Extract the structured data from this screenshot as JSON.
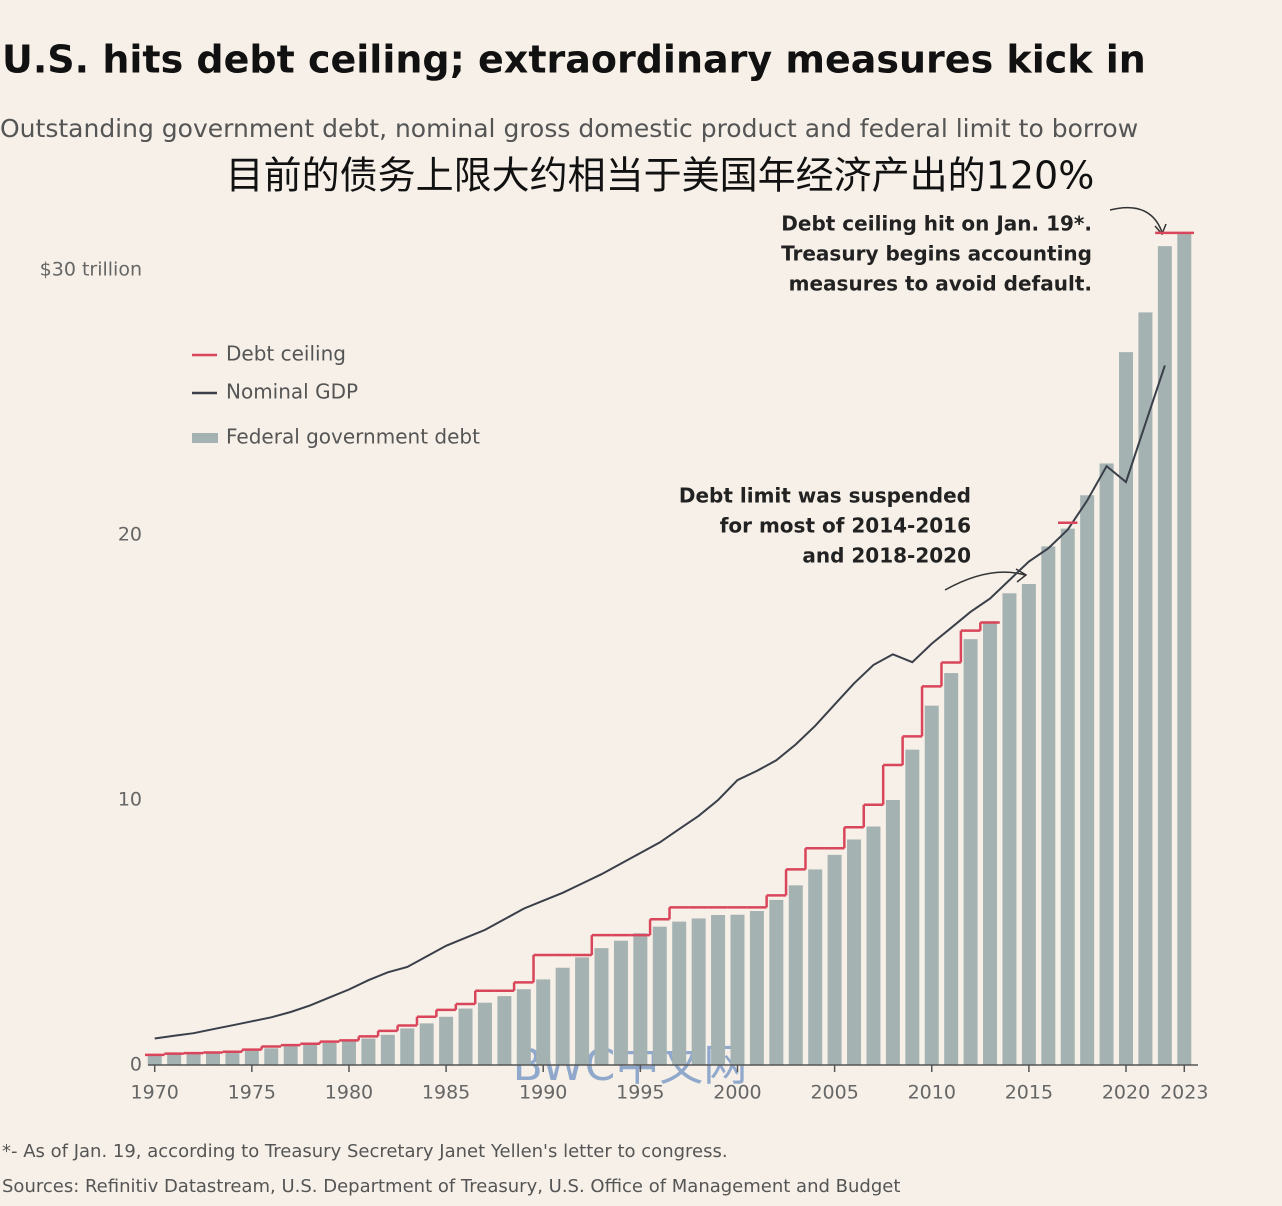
{
  "chart_data": {
    "type": "bar",
    "title": "U.S. hits debt ceiling; extraordinary measures kick in",
    "subtitle": "Outstanding government debt, nominal gross domestic product and federal limit to borrow",
    "headline": "目前的债务上限大约相当于美国年经济产出的120%",
    "annotations": [
      {
        "lines": [
          "Debt ceiling hit on Jan. 19*.",
          "Treasury begins accounting",
          "measures to avoid default."
        ]
      },
      {
        "lines": [
          "Debt limit was suspended",
          "for most of 2014-2016",
          "and 2018-2020"
        ]
      }
    ],
    "footnote": "*- As of Jan. 19, according to Treasury Secretary Janet Yellen's letter to congress.",
    "source": "Sources: Refinitiv Datastream, U.S. Department of Treasury, U.S. Office of Management and Budget",
    "watermark": "BWC中文网",
    "x": [
      1970,
      1971,
      1972,
      1973,
      1974,
      1975,
      1976,
      1977,
      1978,
      1979,
      1980,
      1981,
      1982,
      1983,
      1984,
      1985,
      1986,
      1987,
      1988,
      1989,
      1990,
      1991,
      1992,
      1993,
      1994,
      1995,
      1996,
      1997,
      1998,
      1999,
      2000,
      2001,
      2002,
      2003,
      2004,
      2005,
      2006,
      2007,
      2008,
      2009,
      2010,
      2011,
      2012,
      2013,
      2014,
      2015,
      2016,
      2017,
      2018,
      2019,
      2020,
      2021,
      2022,
      2023
    ],
    "xlim": [
      1969.5,
      2023.5
    ],
    "xticks": [
      1970,
      1975,
      1980,
      1985,
      1990,
      1995,
      2000,
      2005,
      2010,
      2015,
      2020,
      2023
    ],
    "ylim": [
      0,
      32
    ],
    "yticks": [
      0,
      10,
      20,
      {
        "value": 30,
        "label": "$30 trillion"
      }
    ],
    "series": [
      {
        "name": "Debt ceiling",
        "kind": "step",
        "color": "#d9455a",
        "values": [
          0.38,
          0.43,
          0.45,
          0.47,
          0.5,
          0.58,
          0.7,
          0.75,
          0.8,
          0.88,
          0.93,
          1.08,
          1.29,
          1.49,
          1.82,
          2.08,
          2.3,
          2.8,
          2.8,
          3.12,
          4.15,
          4.15,
          4.15,
          4.9,
          4.9,
          4.9,
          5.5,
          5.95,
          5.95,
          5.95,
          5.95,
          5.95,
          6.4,
          7.38,
          8.18,
          8.18,
          8.97,
          9.82,
          11.32,
          12.4,
          14.29,
          15.19,
          16.39,
          16.7,
          null,
          null,
          null,
          20.46,
          null,
          null,
          null,
          null,
          31.4,
          31.4
        ]
      },
      {
        "name": "Nominal GDP",
        "kind": "line",
        "color": "#3a3f4a",
        "values": [
          1.0,
          1.1,
          1.2,
          1.35,
          1.5,
          1.65,
          1.8,
          2.0,
          2.25,
          2.55,
          2.85,
          3.2,
          3.5,
          3.7,
          4.1,
          4.5,
          4.8,
          5.1,
          5.5,
          5.9,
          6.2,
          6.5,
          6.85,
          7.2,
          7.6,
          8.0,
          8.4,
          8.9,
          9.4,
          10.0,
          10.75,
          11.1,
          11.5,
          12.1,
          12.8,
          13.6,
          14.4,
          15.1,
          15.5,
          15.2,
          15.9,
          16.5,
          17.1,
          17.6,
          18.3,
          19.0,
          19.5,
          20.2,
          21.3,
          22.6,
          22.0,
          24.2,
          26.4,
          null
        ]
      },
      {
        "name": "Federal government debt",
        "kind": "bar",
        "color": "#a5b2b2",
        "values": [
          0.37,
          0.4,
          0.43,
          0.46,
          0.48,
          0.54,
          0.63,
          0.71,
          0.78,
          0.83,
          0.91,
          1.0,
          1.14,
          1.38,
          1.57,
          1.82,
          2.13,
          2.35,
          2.6,
          2.86,
          3.23,
          3.67,
          4.06,
          4.41,
          4.69,
          4.97,
          5.22,
          5.41,
          5.53,
          5.66,
          5.67,
          5.81,
          6.23,
          6.78,
          7.38,
          7.93,
          8.51,
          9.0,
          10.0,
          11.9,
          13.56,
          14.79,
          16.07,
          16.74,
          17.8,
          18.15,
          19.57,
          20.24,
          21.5,
          22.7,
          26.9,
          28.4,
          30.9,
          31.4
        ]
      }
    ]
  }
}
